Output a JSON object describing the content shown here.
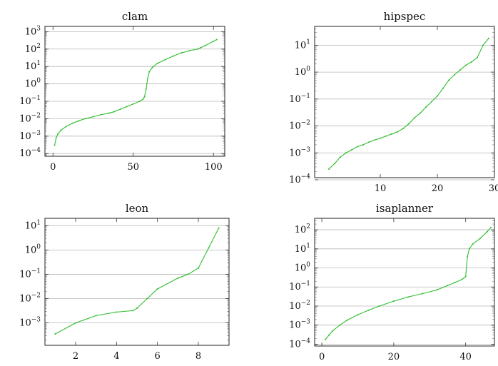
{
  "figure": {
    "line_color": "#2ebd2e",
    "grid": true,
    "y_scale": "log"
  },
  "chart_data": [
    {
      "type": "line",
      "title": "clam",
      "xlim": [
        -5,
        107
      ],
      "ylim": [
        7e-05,
        2000
      ],
      "xticks": [
        0,
        50,
        100
      ],
      "yticks": [
        -4,
        -3,
        -2,
        -1,
        0,
        1,
        2,
        3
      ],
      "grid": true,
      "series": [
        {
          "x": [
            1,
            2,
            3,
            5,
            8,
            12,
            16,
            20,
            25,
            30,
            35,
            38,
            42,
            46,
            50,
            54,
            56,
            57,
            58,
            59,
            60,
            62,
            65,
            70,
            75,
            80,
            85,
            90,
            92,
            95,
            100,
            102
          ],
          "y": [
            0.0003,
            0.0008,
            0.0013,
            0.0022,
            0.0035,
            0.0055,
            0.0075,
            0.01,
            0.013,
            0.017,
            0.021,
            0.025,
            0.035,
            0.05,
            0.07,
            0.1,
            0.13,
            0.18,
            0.5,
            2,
            5,
            9,
            15,
            25,
            40,
            60,
            80,
            100,
            120,
            160,
            280,
            350
          ]
        }
      ]
    },
    {
      "type": "line",
      "title": "hipspec",
      "xlim": [
        -1.5,
        30
      ],
      "ylim": [
        0.00012,
        50
      ],
      "xticks": [
        10,
        20,
        30
      ],
      "yticks": [
        -4,
        -3,
        -2,
        -1,
        0,
        1
      ],
      "grid": true,
      "series": [
        {
          "x": [
            1,
            2,
            3,
            4,
            5,
            6,
            7,
            8,
            9,
            10,
            11,
            12,
            13,
            14,
            15,
            16,
            17,
            18,
            19,
            20,
            21,
            22,
            23,
            24,
            25,
            26,
            27,
            28,
            29
          ],
          "y": [
            0.00025,
            0.0004,
            0.0007,
            0.001,
            0.0013,
            0.0017,
            0.002,
            0.0025,
            0.003,
            0.0035,
            0.0042,
            0.005,
            0.006,
            0.008,
            0.012,
            0.02,
            0.03,
            0.05,
            0.08,
            0.13,
            0.25,
            0.5,
            0.8,
            1.2,
            1.8,
            2.4,
            3.5,
            10,
            18
          ]
        }
      ]
    },
    {
      "type": "line",
      "title": "leon",
      "xlim": [
        0.5,
        9.5
      ],
      "ylim": [
        0.00012,
        20
      ],
      "xticks": [
        2,
        4,
        6,
        8
      ],
      "yticks": [
        -3,
        -2,
        -1,
        0,
        1
      ],
      "grid": true,
      "series": [
        {
          "x": [
            1,
            2,
            3,
            4,
            4.8,
            5,
            5.5,
            6,
            7,
            7.5,
            8,
            8.5,
            9
          ],
          "y": [
            0.00035,
            0.001,
            0.002,
            0.0028,
            0.0032,
            0.004,
            0.01,
            0.025,
            0.07,
            0.1,
            0.18,
            1.2,
            8
          ]
        }
      ]
    },
    {
      "type": "line",
      "title": "isaplanner",
      "xlim": [
        -2,
        48
      ],
      "ylim": [
        8e-05,
        400
      ],
      "xticks": [
        0,
        20,
        40
      ],
      "yticks": [
        -4,
        -3,
        -2,
        -1,
        0,
        1,
        2
      ],
      "grid": true,
      "series": [
        {
          "x": [
            1,
            2,
            3,
            5,
            7,
            10,
            13,
            16,
            20,
            24,
            28,
            32,
            35,
            37,
            39,
            40,
            40.5,
            41,
            42,
            44,
            46,
            47
          ],
          "y": [
            0.00018,
            0.0003,
            0.0005,
            0.001,
            0.0018,
            0.0035,
            0.006,
            0.01,
            0.018,
            0.03,
            0.045,
            0.07,
            0.12,
            0.17,
            0.25,
            0.35,
            4,
            10,
            18,
            35,
            80,
            130
          ]
        }
      ]
    }
  ]
}
